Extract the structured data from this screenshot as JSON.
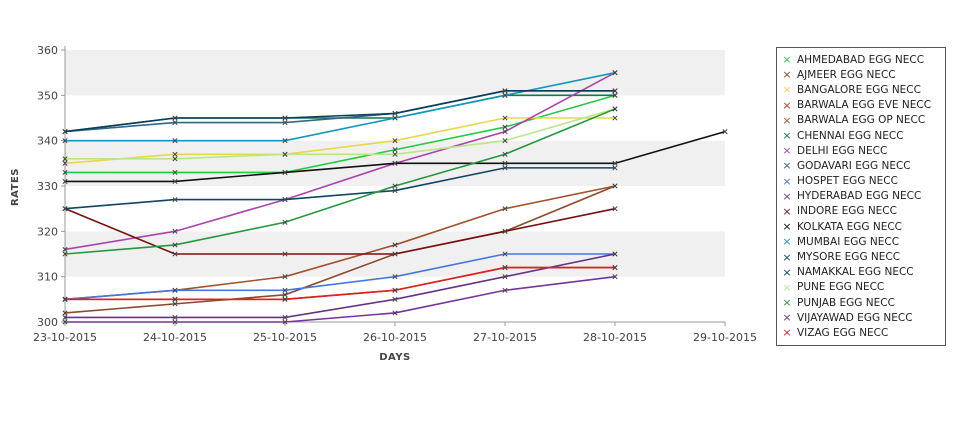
{
  "chart_data": {
    "type": "line",
    "xlabel": "DAYS",
    "ylabel": "RATES",
    "categories": [
      "23-10-2015",
      "24-10-2015",
      "25-10-2015",
      "26-10-2015",
      "27-10-2015",
      "28-10-2015",
      "29-10-2015"
    ],
    "ylim": [
      300,
      360
    ],
    "yticks": [
      300,
      310,
      320,
      330,
      340,
      350,
      360
    ],
    "grid": "horizontal alternating bands",
    "legend_position": "right",
    "series": [
      {
        "name": "AHMEDABAD EGG NECC",
        "color": "#22cc44",
        "values": [
          333,
          333,
          333,
          338,
          343,
          350,
          null
        ]
      },
      {
        "name": "AJMEER EGG NECC",
        "color": "#8b4a2b",
        "values": [
          302,
          304,
          306,
          315,
          320,
          330,
          null
        ]
      },
      {
        "name": "BANGALORE EGG NECC",
        "color": "#e6d84a",
        "values": [
          335,
          337,
          337,
          340,
          345,
          345,
          null
        ]
      },
      {
        "name": "BARWALA EGG EVE NECC",
        "color": "#cc3311",
        "values": [
          305,
          305,
          305,
          307,
          312,
          312,
          null
        ]
      },
      {
        "name": "BARWALA EGG OP NECC",
        "color": "#a0522d",
        "values": [
          305,
          307,
          310,
          317,
          325,
          330,
          null
        ]
      },
      {
        "name": "CHENNAI EGG NECC",
        "color": "#117755",
        "values": [
          342,
          345,
          345,
          345,
          350,
          350,
          null
        ]
      },
      {
        "name": "DELHI EGG NECC",
        "color": "#aa44aa",
        "values": [
          316,
          320,
          327,
          335,
          342,
          355,
          null
        ]
      },
      {
        "name": "GODAVARI EGG NECC",
        "color": "#336688",
        "values": [
          342,
          344,
          344,
          346,
          351,
          351,
          null
        ]
      },
      {
        "name": "HOSPET EGG NECC",
        "color": "#4477dd",
        "values": [
          305,
          307,
          307,
          310,
          315,
          315,
          null
        ]
      },
      {
        "name": "HYDERABAD EGG NECC",
        "color": "#773399",
        "values": [
          300,
          300,
          300,
          302,
          307,
          310,
          null
        ]
      },
      {
        "name": "INDORE EGG NECC",
        "color": "#771111",
        "values": [
          325,
          315,
          315,
          315,
          320,
          325,
          null
        ]
      },
      {
        "name": "KOLKATA EGG NECC",
        "color": "#111111",
        "values": [
          331,
          331,
          333,
          335,
          335,
          335,
          342
        ]
      },
      {
        "name": "MUMBAI EGG NECC",
        "color": "#1199bb",
        "values": [
          340,
          340,
          340,
          345,
          350,
          355,
          null
        ]
      },
      {
        "name": "MYSORE EGG NECC",
        "color": "#114466",
        "values": [
          325,
          327,
          327,
          329,
          334,
          334,
          null
        ]
      },
      {
        "name": "NAMAKKAL EGG NECC",
        "color": "#0a3d5c",
        "values": [
          342,
          345,
          345,
          346,
          351,
          351,
          null
        ]
      },
      {
        "name": "PUNE EGG NECC",
        "color": "#bbe688",
        "values": [
          336,
          336,
          337,
          337,
          340,
          347,
          null
        ]
      },
      {
        "name": "PUNJAB EGG NECC",
        "color": "#22993a",
        "values": [
          315,
          317,
          322,
          330,
          337,
          347,
          null
        ]
      },
      {
        "name": "VIJAYAWAD EGG NECC",
        "color": "#663388",
        "values": [
          301,
          301,
          301,
          305,
          310,
          315,
          null
        ]
      },
      {
        "name": "VIZAG EGG NECC",
        "color": "#dd2222",
        "values": [
          305,
          305,
          305,
          307,
          312,
          312,
          null
        ]
      }
    ]
  }
}
